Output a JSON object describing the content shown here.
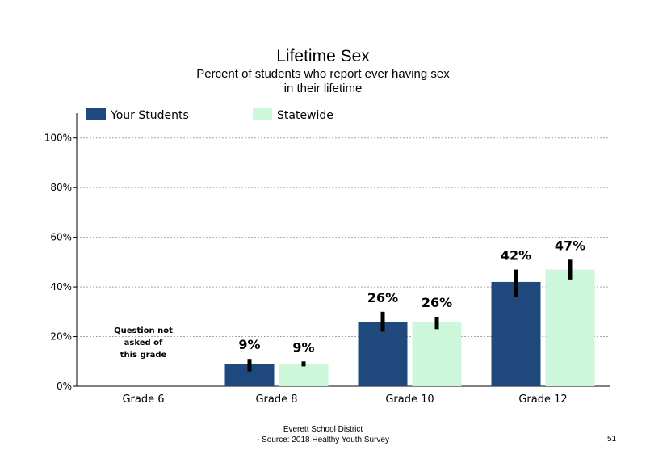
{
  "chart_data": {
    "type": "bar",
    "title": "Lifetime Sex",
    "subtitle_line1": "Percent of students who report ever having sex",
    "subtitle_line2": "in their lifetime",
    "categories": [
      "Grade 6",
      "Grade 8",
      "Grade 10",
      "Grade 12"
    ],
    "series": [
      {
        "name": "Your Students",
        "color": "#1f497d",
        "values": [
          null,
          9,
          26,
          42
        ],
        "labels": [
          "",
          "9%",
          "26%",
          "42%"
        ],
        "error_low": [
          null,
          6,
          22,
          36
        ],
        "error_high": [
          null,
          11,
          30,
          47
        ]
      },
      {
        "name": "Statewide",
        "color": "#ccf7da",
        "values": [
          null,
          9,
          26,
          47
        ],
        "labels": [
          "",
          "9%",
          "26%",
          "47%"
        ],
        "error_low": [
          null,
          8,
          23,
          43
        ],
        "error_high": [
          null,
          10,
          28,
          51
        ]
      }
    ],
    "ylim": [
      0,
      110
    ],
    "yticks": [
      0,
      20,
      40,
      60,
      80,
      100
    ],
    "ytick_labels": [
      "0%",
      "20%",
      "40%",
      "60%",
      "80%",
      "100%"
    ],
    "grid": true,
    "legend_position": "top-left",
    "annotation_lines": [
      "Question not",
      "asked of",
      "this grade"
    ]
  },
  "footer": {
    "line1": "Everett School District",
    "line2": "- Source: 2018 Healthy  Youth Survey"
  },
  "page_number": "51"
}
